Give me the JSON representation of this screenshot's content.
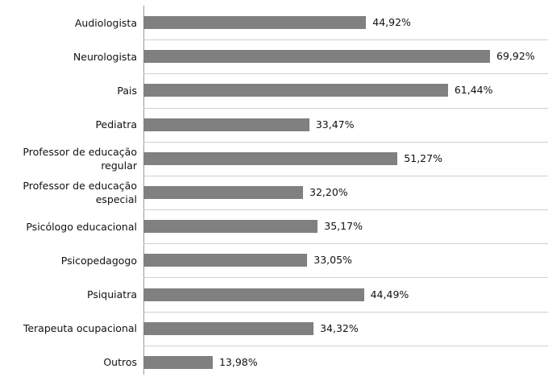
{
  "chart_data": {
    "type": "bar",
    "orientation": "horizontal",
    "categories": [
      "Audiologista",
      "Neurologista",
      "Pais",
      "Pediatra",
      "Professor de educação regular",
      "Professor de educação especial",
      "Psicólogo educacional",
      "Psicopedagogo",
      "Psiquiatra",
      "Terapeuta ocupacional",
      "Outros"
    ],
    "values": [
      44.92,
      69.92,
      61.44,
      33.47,
      51.27,
      32.2,
      35.17,
      33.05,
      44.49,
      34.32,
      13.98
    ],
    "value_labels": [
      "44,92%",
      "69,92%",
      "61,44%",
      "33,47%",
      "51,27%",
      "32,20%",
      "35,17%",
      "33,05%",
      "44,49%",
      "34,32%",
      "13,98%"
    ],
    "color": "#808080",
    "xlim": [
      0,
      80
    ]
  }
}
